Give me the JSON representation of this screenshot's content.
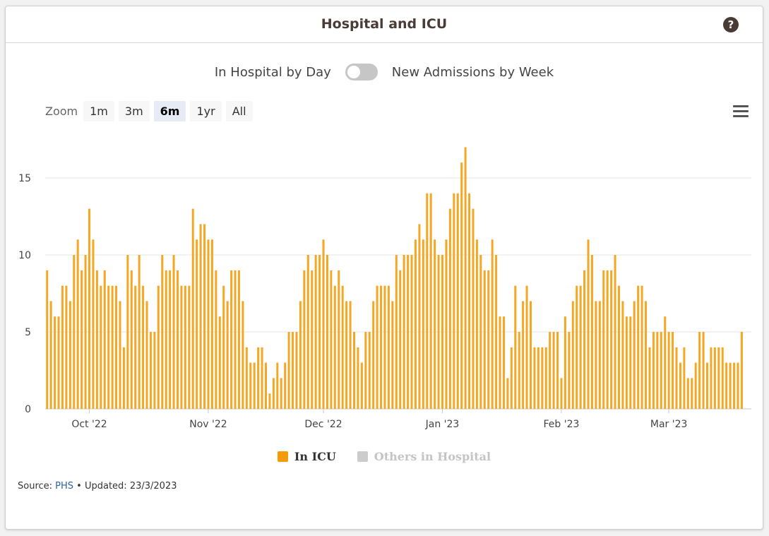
{
  "header": {
    "title": "Hospital and ICU",
    "help_icon": "?"
  },
  "toggle": {
    "left_label": "In Hospital by Day",
    "right_label": "New Admissions by Week",
    "state": "left"
  },
  "zoom": {
    "label": "Zoom",
    "buttons": [
      "1m",
      "3m",
      "6m",
      "1yr",
      "All"
    ],
    "active": "6m"
  },
  "menu_icon": "hamburger-menu",
  "legend": {
    "items": [
      {
        "label": "In ICU",
        "color": "#f59b0b",
        "active": true
      },
      {
        "label": "Others in Hospital",
        "color": "#cccccc",
        "active": false
      }
    ]
  },
  "source": {
    "prefix": "Source: ",
    "link_text": "PHS",
    "suffix": " • Updated: 23/3/2023"
  },
  "chart_data": {
    "type": "bar",
    "bar_color": "#f5a623",
    "x_start": "2022-09-20",
    "x_end": "2023-03-23",
    "x_ticks": [
      {
        "label": "Oct '22",
        "date": "2022-10-01"
      },
      {
        "label": "Nov '22",
        "date": "2022-11-01"
      },
      {
        "label": "Dec '22",
        "date": "2022-12-01"
      },
      {
        "label": "Jan '23",
        "date": "2023-01-01"
      },
      {
        "label": "Feb '23",
        "date": "2023-02-01"
      },
      {
        "label": "Mar '23",
        "date": "2023-03-01"
      }
    ],
    "y_ticks": [
      0,
      5,
      10,
      15
    ],
    "ylim": [
      0,
      18
    ],
    "grid": true,
    "series": [
      {
        "name": "In ICU",
        "values": [
          9,
          7,
          6,
          6,
          8,
          8,
          7,
          10,
          11,
          9,
          10,
          13,
          11,
          9,
          8,
          9,
          8,
          8,
          8,
          7,
          4,
          10,
          9,
          8,
          10,
          8,
          7,
          5,
          5,
          8,
          10,
          9,
          9,
          10,
          9,
          8,
          8,
          8,
          13,
          11,
          12,
          12,
          11,
          11,
          9,
          6,
          8,
          7,
          9,
          9,
          9,
          7,
          4,
          3,
          3,
          4,
          4,
          3,
          1,
          2,
          3,
          2,
          3,
          5,
          5,
          5,
          7,
          9,
          10,
          9,
          10,
          10,
          11,
          10,
          9,
          8,
          9,
          8,
          7,
          7,
          5,
          4,
          3,
          5,
          5,
          7,
          8,
          8,
          8,
          8,
          7,
          10,
          9,
          10,
          10,
          10,
          11,
          12,
          11,
          14,
          14,
          11,
          10,
          10,
          11,
          13,
          14,
          14,
          16,
          17,
          14,
          13,
          11,
          10,
          9,
          9,
          11,
          10,
          6,
          6,
          2,
          4,
          8,
          5,
          7,
          8,
          7,
          4,
          4,
          4,
          4,
          5,
          5,
          5,
          2,
          6,
          5,
          7,
          8,
          8,
          9,
          11,
          10,
          7,
          7,
          9,
          9,
          9,
          10,
          8,
          7,
          6,
          6,
          7,
          8,
          8,
          7,
          4,
          5,
          5,
          5,
          6,
          5,
          5,
          4,
          3,
          4,
          2,
          2,
          3,
          5,
          5,
          3,
          4,
          4,
          4,
          4,
          3,
          3,
          3,
          3,
          5
        ]
      }
    ]
  }
}
